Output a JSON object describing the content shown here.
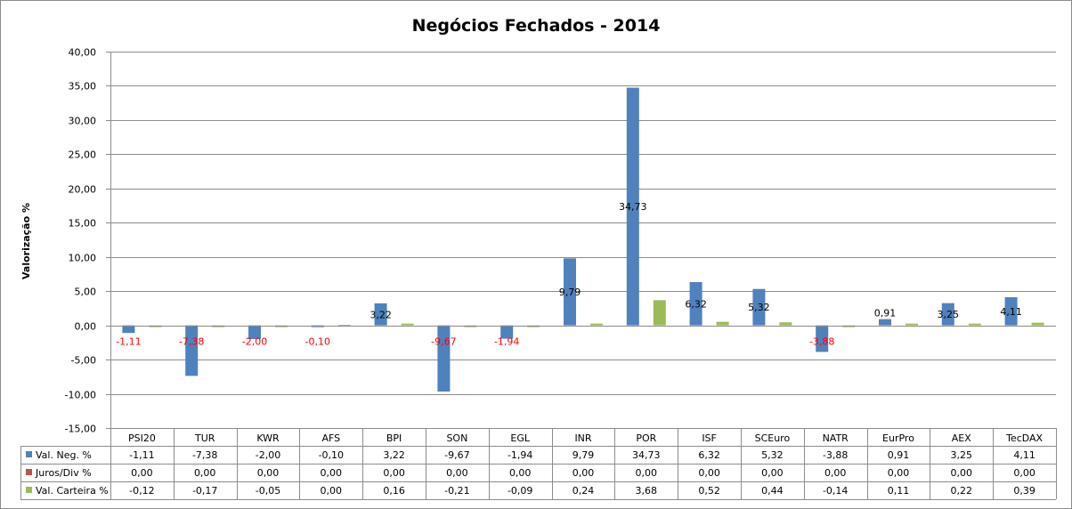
{
  "chart_data": {
    "type": "bar",
    "title": "Negócios Fechados - 2014",
    "ylabel": "Valorização %",
    "ylim": [
      -15,
      40
    ],
    "ytick_step": 5,
    "ytick_labels": [
      "40,00",
      "35,00",
      "30,00",
      "25,00",
      "20,00",
      "15,00",
      "10,00",
      "5,00",
      "0,00",
      "-5,00",
      "-10,00",
      "-15,00"
    ],
    "grid": true,
    "legend": "data-table",
    "categories": [
      "PSI20",
      "TUR",
      "KWR",
      "AFS",
      "BPI",
      "SON",
      "EGL",
      "INR",
      "POR",
      "ISF",
      "SCEuro",
      "NATR",
      "EurPro",
      "AEX",
      "TecDAX"
    ],
    "series": [
      {
        "name": "Val. Neg. %",
        "color": "#4f81bd",
        "values": [
          -1.11,
          -7.38,
          -2.0,
          -0.1,
          3.22,
          -9.67,
          -1.94,
          9.79,
          34.73,
          6.32,
          5.32,
          -3.88,
          0.91,
          3.25,
          4.11
        ],
        "display": [
          "-1,11",
          "-7,38",
          "-2,00",
          "-0,10",
          "3,22",
          "-9,67",
          "-1,94",
          "9,79",
          "34,73",
          "6,32",
          "5,32",
          "-3,88",
          "0,91",
          "3,25",
          "4,11"
        ],
        "data_labels": true,
        "negative_label_color": "#ff0000",
        "positive_label_color": "#000000"
      },
      {
        "name": "Juros/Div %",
        "color": "#c0504d",
        "values": [
          0,
          0,
          0,
          0,
          0,
          0,
          0,
          0,
          0,
          0,
          0,
          0,
          0,
          0,
          0
        ],
        "display": [
          "0,00",
          "0,00",
          "0,00",
          "0,00",
          "0,00",
          "0,00",
          "0,00",
          "0,00",
          "0,00",
          "0,00",
          "0,00",
          "0,00",
          "0,00",
          "0,00",
          "0,00"
        ],
        "data_labels": false
      },
      {
        "name": "Val. Carteira %",
        "color": "#9bbb59",
        "values": [
          -0.12,
          -0.17,
          -0.05,
          0.0,
          0.16,
          -0.21,
          -0.09,
          0.24,
          3.68,
          0.52,
          0.44,
          -0.14,
          0.11,
          0.22,
          0.39
        ],
        "display": [
          "-0,12",
          "-0,17",
          "-0,05",
          "0,00",
          "0,16",
          "-0,21",
          "-0,09",
          "0,24",
          "3,68",
          "0,52",
          "0,44",
          "-0,14",
          "0,11",
          "0,22",
          "0,39"
        ],
        "data_labels": false
      }
    ]
  }
}
